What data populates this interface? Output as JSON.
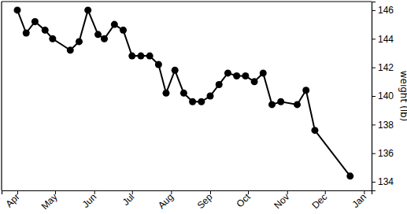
{
  "chart_data": {
    "type": "line",
    "ylabel": "weight (lb)",
    "color": "#000000",
    "marker": "circle",
    "line_style": "solid",
    "grid": false,
    "x": [
      0,
      7,
      14,
      22,
      28,
      42,
      49,
      56,
      64,
      69,
      77,
      84,
      91,
      98,
      105,
      112,
      118,
      125,
      132,
      139,
      146,
      153,
      160,
      167,
      174,
      181,
      188,
      195,
      202,
      209,
      222,
      229,
      236,
      264
    ],
    "values": [
      146.0,
      144.4,
      145.2,
      144.6,
      144.0,
      143.2,
      143.8,
      146.0,
      144.3,
      144.0,
      145.0,
      144.6,
      142.8,
      142.8,
      142.8,
      142.2,
      140.2,
      141.8,
      140.2,
      139.6,
      139.6,
      140.0,
      140.8,
      141.6,
      141.4,
      141.4,
      141.0,
      141.6,
      139.4,
      139.6,
      139.4,
      140.4,
      137.6,
      134.4
    ],
    "xlim": [
      -12.5,
      281
    ],
    "xticks": [
      {
        "value": 0,
        "label": "Apr"
      },
      {
        "value": 30,
        "label": "May"
      },
      {
        "value": 61,
        "label": "Jun"
      },
      {
        "value": 91,
        "label": "Jul"
      },
      {
        "value": 122,
        "label": "Aug"
      },
      {
        "value": 153,
        "label": "Sep"
      },
      {
        "value": 183,
        "label": "Oct"
      },
      {
        "value": 214,
        "label": "Nov"
      },
      {
        "value": 244,
        "label": "Dec"
      },
      {
        "value": 275,
        "label": "Jan"
      }
    ],
    "ylim": [
      133.4,
      146.6
    ],
    "yticks": [
      134,
      136,
      138,
      140,
      142,
      144,
      146
    ]
  }
}
